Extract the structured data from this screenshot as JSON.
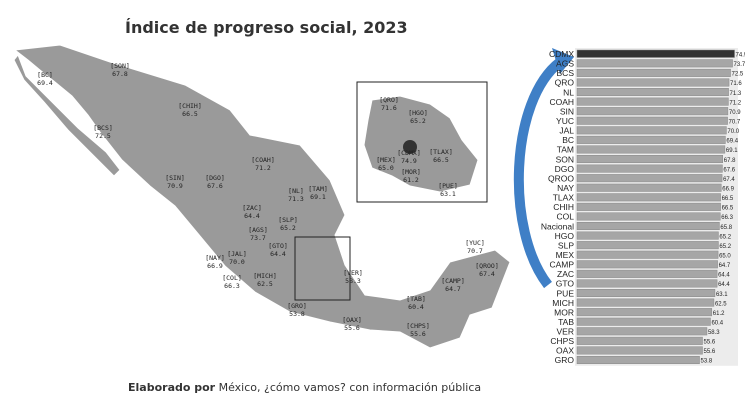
{
  "title": "Índice de progreso social, 2023",
  "footer": {
    "bold": "Elaborado por",
    "rest": " México, ¿cómo vamos? con información pública"
  },
  "colors": {
    "map_fill": "#9a9a9a",
    "bar_fill": "#a6a6a6",
    "top_bar": "#333333",
    "arrow": "#3f7fc6"
  },
  "map_labels": [
    {
      "code": "BC",
      "value": "69.4"
    },
    {
      "code": "SON",
      "value": "67.8"
    },
    {
      "code": "CHIH",
      "value": "66.5"
    },
    {
      "code": "BCS",
      "value": "72.5"
    },
    {
      "code": "COAH",
      "value": "71.2"
    },
    {
      "code": "NL",
      "value": "71.3"
    },
    {
      "code": "TAM",
      "value": "69.1"
    },
    {
      "code": "SIN",
      "value": "70.9"
    },
    {
      "code": "DGO",
      "value": "67.6"
    },
    {
      "code": "ZAC",
      "value": "64.4"
    },
    {
      "code": "SLP",
      "value": "65.2"
    },
    {
      "code": "AGS",
      "value": "73.7"
    },
    {
      "code": "NAY",
      "value": "66.9"
    },
    {
      "code": "JAL",
      "value": "70.0"
    },
    {
      "code": "GTO",
      "value": "64.4"
    },
    {
      "code": "COL",
      "value": "66.3"
    },
    {
      "code": "MICH",
      "value": "62.5"
    },
    {
      "code": "GRO",
      "value": "53.8"
    },
    {
      "code": "VER",
      "value": "58.3"
    },
    {
      "code": "OAX",
      "value": "55.6"
    },
    {
      "code": "TAB",
      "value": "60.4"
    },
    {
      "code": "CHPS",
      "value": "55.6"
    },
    {
      "code": "CAMP",
      "value": "64.7"
    },
    {
      "code": "YUC",
      "value": "70.7"
    },
    {
      "code": "QROO",
      "value": "67.4"
    }
  ],
  "inset_labels": [
    {
      "code": "QRO",
      "value": "71.6"
    },
    {
      "code": "HGO",
      "value": "65.2"
    },
    {
      "code": "CDMX",
      "value": "74.9"
    },
    {
      "code": "TLAX",
      "value": "66.5"
    },
    {
      "code": "MEX",
      "value": "65.0"
    },
    {
      "code": "MOR",
      "value": "61.2"
    },
    {
      "code": "PUE",
      "value": "63.1"
    }
  ],
  "chart_data": {
    "type": "bar",
    "orientation": "horizontal",
    "title": "Índice de progreso social, 2023",
    "categories": [
      "CDMX",
      "AGS",
      "BCS",
      "QRO",
      "NL",
      "COAH",
      "SIN",
      "YUC",
      "JAL",
      "BC",
      "TAM",
      "SON",
      "DGO",
      "QROO",
      "NAY",
      "TLAX",
      "CHIH",
      "COL",
      "Nacional",
      "HGO",
      "SLP",
      "MEX",
      "CAMP",
      "ZAC",
      "GTO",
      "PUE",
      "MICH",
      "MOR",
      "TAB",
      "VER",
      "CHPS",
      "OAX",
      "GRO"
    ],
    "values": [
      74.9,
      73.7,
      72.5,
      71.6,
      71.3,
      71.2,
      70.9,
      70.7,
      70.0,
      69.4,
      69.1,
      67.8,
      67.6,
      67.4,
      66.9,
      66.5,
      66.5,
      66.3,
      65.8,
      65.2,
      65.2,
      65.0,
      64.7,
      64.4,
      64.4,
      63.1,
      62.5,
      61.2,
      60.4,
      58.3,
      55.6,
      55.6,
      53.8
    ],
    "value_labels": [
      "74.9",
      "73.7",
      "72.5",
      "71.6",
      "71.3",
      "71.2",
      "70.9",
      "70.7",
      "70.0",
      "69.4",
      "69.1",
      "67.8",
      "67.6",
      "67.4",
      "66.9",
      "66.5",
      "66.5",
      "66.3",
      "65.8",
      "65.2",
      "65.2",
      "65.0",
      "64.7",
      "64.4",
      "64.4",
      "63.1",
      "62.5",
      "61.2",
      "60.4",
      "58.3",
      "55.6",
      "55.6",
      "53.8"
    ],
    "highlight": "CDMX",
    "grid": false
  }
}
